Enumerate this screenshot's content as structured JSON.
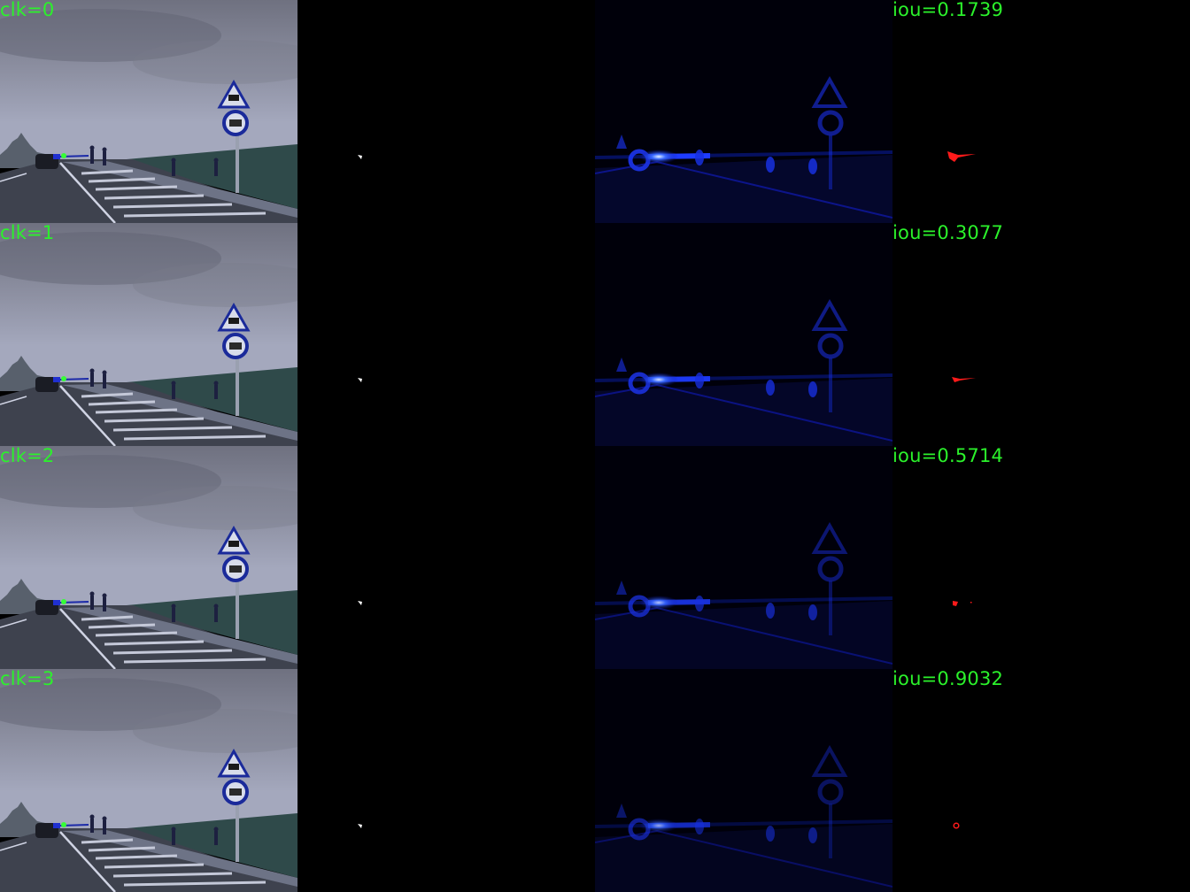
{
  "rows": [
    {
      "click_label": "clk=0",
      "iou_label": "iou=0.1739",
      "heat": 1.0,
      "pred": "arrow-large"
    },
    {
      "click_label": "clk=1",
      "iou_label": "iou=0.3077",
      "heat": 0.92,
      "pred": "arrow-small"
    },
    {
      "click_label": "clk=2",
      "iou_label": "iou=0.5714",
      "heat": 0.78,
      "pred": "blob-small"
    },
    {
      "click_label": "clk=3",
      "iou_label": "iou=0.9032",
      "heat": 0.65,
      "pred": "dot"
    }
  ],
  "colors": {
    "label_text": "#2bf22b",
    "click_point": "#35ff35",
    "prediction": "#ff1a1a",
    "heatmap": "#1030ff",
    "ground_truth_mask": "#ffffff"
  }
}
